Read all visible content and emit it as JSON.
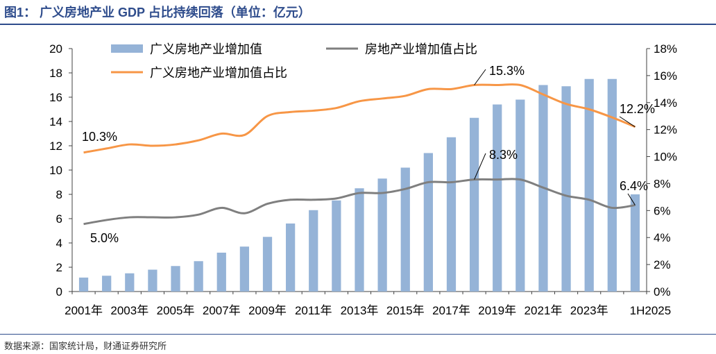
{
  "header": {
    "figure_title": "图1：  广义房地产业 GDP 占比持续回落（单位：亿元）"
  },
  "footer": {
    "source": "数据来源：国家统计局，财通证券研究所"
  },
  "colors": {
    "bar": "#95B3D7",
    "line_narrow": "#7F7F7F",
    "line_broad": "#F79646",
    "title": "#2E4C8C"
  },
  "chart_data": {
    "type": "bar",
    "title": "",
    "xlabel": "",
    "ylabel": "",
    "ylim": [
      0,
      20
    ],
    "y2lim": [
      0,
      0.18
    ],
    "y_ticks": [
      "0",
      "2",
      "4",
      "6",
      "8",
      "10",
      "12",
      "14",
      "16",
      "18",
      "20"
    ],
    "y2_ticks": [
      "0%",
      "2%",
      "4%",
      "6%",
      "8%",
      "10%",
      "12%",
      "14%",
      "16%",
      "18%"
    ],
    "x_tick_labels": [
      "2001年",
      "2003年",
      "2005年",
      "2007年",
      "2009年",
      "2011年",
      "2013年",
      "2015年",
      "2017年",
      "2019年",
      "2021年",
      "2023年",
      "1H2025"
    ],
    "categories": [
      "2001",
      "2002",
      "2003",
      "2004",
      "2005",
      "2006",
      "2007",
      "2008",
      "2009",
      "2010",
      "2011",
      "2012",
      "2013",
      "2014",
      "2015",
      "2016",
      "2017",
      "2018",
      "2019",
      "2020",
      "2021",
      "2022",
      "2023",
      "2024",
      "1H2025"
    ],
    "legend_position": "top",
    "series": [
      {
        "name": "广义房地产业增加值",
        "type": "bar",
        "axis": "left",
        "values": [
          1.15,
          1.3,
          1.5,
          1.8,
          2.1,
          2.5,
          3.2,
          3.7,
          4.5,
          5.6,
          6.7,
          7.5,
          8.5,
          9.3,
          10.2,
          11.4,
          12.7,
          14.3,
          15.4,
          15.8,
          17.0,
          16.9,
          17.5,
          17.5,
          8.0
        ]
      },
      {
        "name": "房地产业增加值占比",
        "type": "line",
        "axis": "right",
        "values": [
          0.05,
          0.053,
          0.055,
          0.055,
          0.055,
          0.057,
          0.062,
          0.058,
          0.065,
          0.068,
          0.068,
          0.069,
          0.073,
          0.073,
          0.076,
          0.081,
          0.081,
          0.083,
          0.083,
          0.083,
          0.077,
          0.071,
          0.068,
          0.062,
          0.064
        ]
      },
      {
        "name": "广义房地产业增加值占比",
        "type": "line",
        "axis": "right",
        "values": [
          0.103,
          0.106,
          0.109,
          0.108,
          0.109,
          0.112,
          0.117,
          0.116,
          0.13,
          0.133,
          0.134,
          0.136,
          0.141,
          0.143,
          0.145,
          0.15,
          0.15,
          0.153,
          0.153,
          0.153,
          0.146,
          0.139,
          0.135,
          0.129,
          0.122
        ]
      }
    ],
    "annotations": [
      {
        "text": "10.3%",
        "series": 2,
        "index": 0
      },
      {
        "text": "5.0%",
        "series": 1,
        "index": 0
      },
      {
        "text": "15.3%",
        "series": 2,
        "index": 17
      },
      {
        "text": "8.3%",
        "series": 1,
        "index": 17
      },
      {
        "text": "12.2%",
        "series": 2,
        "index": 24
      },
      {
        "text": "6.4%",
        "series": 1,
        "index": 24
      }
    ]
  }
}
